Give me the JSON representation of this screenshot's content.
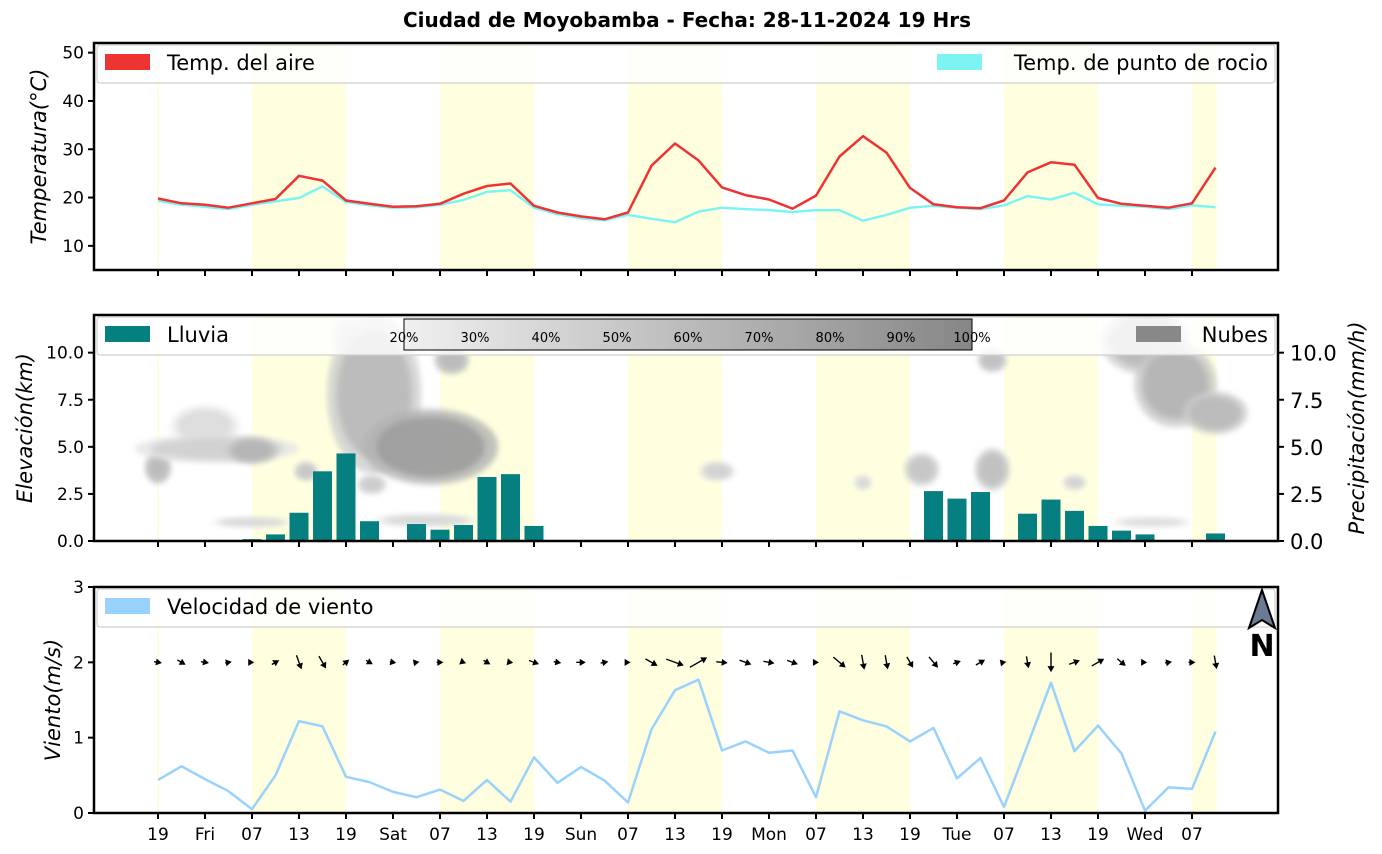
{
  "title": "Ciudad de Moyobamba   -   Fecha: 28-11-2024 19 Hrs",
  "colors": {
    "temp_air": "#ee3333",
    "dew_point": "#7df4f4",
    "rain": "#057f7f",
    "clouds": "#888888",
    "wind": "#99d2fd",
    "day_band": "#ffffe0"
  },
  "x_ticks": [
    "19",
    "Fri",
    "07",
    "13",
    "19",
    "Sat",
    "07",
    "13",
    "19",
    "Sun",
    "07",
    "13",
    "19",
    "Mon",
    "07",
    "13",
    "19",
    "Tue",
    "07",
    "13",
    "19",
    "Wed",
    "07"
  ],
  "chart_data": [
    {
      "type": "line",
      "ylabel": "Temperatura(°C)",
      "ylim": [
        5,
        52
      ],
      "yticks": [
        "10",
        "20",
        "30",
        "40",
        "50"
      ],
      "legend": [
        "Temp. del aire",
        "Temp. de punto de rocio"
      ],
      "series": [
        {
          "name": "Temp. del aire",
          "values": [
            19.8,
            18.8,
            18.5,
            17.9,
            18.8,
            19.7,
            24.5,
            23.5,
            19.4,
            18.7,
            18.1,
            18.2,
            18.7,
            20.8,
            22.4,
            22.9,
            18.3,
            16.9,
            16.1,
            15.5,
            16.9,
            26.6,
            31.2,
            27.7,
            22.1,
            20.5,
            19.6,
            17.7,
            20.4,
            28.5,
            32.7,
            29.3,
            22.0,
            18.6,
            18.0,
            17.8,
            19.4,
            25.2,
            27.3,
            26.8,
            19.9,
            18.7,
            18.3,
            17.9,
            18.8,
            26.2
          ]
        },
        {
          "name": "Temp. de punto de rocio",
          "values": [
            19.3,
            18.5,
            18.1,
            17.6,
            18.5,
            19.2,
            19.9,
            22.3,
            19.1,
            18.4,
            17.9,
            18.0,
            18.5,
            19.5,
            21.2,
            21.5,
            17.9,
            16.6,
            15.7,
            15.3,
            16.4,
            15.6,
            14.9,
            17.1,
            17.9,
            17.6,
            17.4,
            17.0,
            17.4,
            17.4,
            15.2,
            16.4,
            17.9,
            18.3,
            17.9,
            17.6,
            18.4,
            20.3,
            19.6,
            21.0,
            18.6,
            18.3,
            18.1,
            17.6,
            18.4,
            18.0
          ]
        }
      ]
    },
    {
      "type": "bar",
      "ylabel": "Elevación(km)",
      "ylabel_right": "Precipitación(mm/h)",
      "ylim": [
        0,
        12
      ],
      "yticks": [
        "0.0",
        "2.5",
        "5.0",
        "7.5",
        "10.0"
      ],
      "legend": [
        "Lluvia",
        "Nubes"
      ],
      "colorbar_labels": [
        "20%",
        "30%",
        "40%",
        "50%",
        "60%",
        "70%",
        "80%",
        "90%",
        "100%"
      ],
      "series": [
        {
          "name": "Lluvia",
          "values": [
            0,
            0,
            0,
            0,
            0.1,
            0.35,
            1.5,
            3.7,
            4.65,
            1.05,
            0.05,
            0.9,
            0.6,
            0.85,
            3.4,
            3.55,
            0.8,
            0,
            0,
            0,
            0,
            0.05,
            0.05,
            0,
            0,
            0,
            0,
            0,
            0,
            0.05,
            0,
            0.05,
            0.05,
            2.65,
            2.25,
            2.6,
            0.05,
            1.45,
            2.2,
            1.6,
            0.8,
            0.55,
            0.35,
            0,
            0,
            0.4
          ]
        }
      ],
      "clouds": [
        {
          "x": 0.0,
          "y": 3.9,
          "rx": 0.45,
          "ry": 0.7,
          "level": 0.45
        },
        {
          "x": 2.0,
          "y": 6.1,
          "rx": 1.2,
          "ry": 0.9,
          "level": 0.15
        },
        {
          "x": 2.5,
          "y": 4.9,
          "rx": 2.8,
          "ry": 0.6,
          "level": 0.25
        },
        {
          "x": 4.0,
          "y": 4.8,
          "rx": 0.9,
          "ry": 0.55,
          "level": 0.5
        },
        {
          "x": 4.0,
          "y": 1.0,
          "rx": 1.4,
          "ry": 0.2,
          "level": 0.2
        },
        {
          "x": 8.0,
          "y": 10.9,
          "rx": 0.5,
          "ry": 0.8,
          "level": 0.2
        },
        {
          "x": 9.2,
          "y": 7.8,
          "rx": 1.6,
          "ry": 3.4,
          "level": 0.45
        },
        {
          "x": 11.6,
          "y": 5.0,
          "rx": 2.3,
          "ry": 1.6,
          "level": 0.7
        },
        {
          "x": 12.5,
          "y": 9.6,
          "rx": 0.6,
          "ry": 0.6,
          "level": 0.45
        },
        {
          "x": 6.3,
          "y": 3.7,
          "rx": 0.4,
          "ry": 0.4,
          "level": 0.35
        },
        {
          "x": 9.1,
          "y": 3.0,
          "rx": 0.5,
          "ry": 0.4,
          "level": 0.3
        },
        {
          "x": 11.4,
          "y": 1.1,
          "rx": 1.8,
          "ry": 0.25,
          "level": 0.2
        },
        {
          "x": 23.8,
          "y": 3.7,
          "rx": 0.6,
          "ry": 0.4,
          "level": 0.25
        },
        {
          "x": 32.5,
          "y": 3.8,
          "rx": 0.6,
          "ry": 0.7,
          "level": 0.35
        },
        {
          "x": 35.5,
          "y": 3.8,
          "rx": 0.6,
          "ry": 0.9,
          "level": 0.4
        },
        {
          "x": 35.5,
          "y": 9.6,
          "rx": 0.5,
          "ry": 0.5,
          "level": 0.4
        },
        {
          "x": 30.0,
          "y": 3.1,
          "rx": 0.3,
          "ry": 0.3,
          "level": 0.2
        },
        {
          "x": 39.0,
          "y": 3.1,
          "rx": 0.4,
          "ry": 0.3,
          "level": 0.25
        },
        {
          "x": 42.3,
          "y": 1.0,
          "rx": 1.4,
          "ry": 0.2,
          "level": 0.15
        },
        {
          "x": 42.0,
          "y": 10.6,
          "rx": 1.5,
          "ry": 1.4,
          "level": 0.45
        },
        {
          "x": 43.3,
          "y": 8.3,
          "rx": 1.4,
          "ry": 1.8,
          "level": 0.5
        },
        {
          "x": 45.0,
          "y": 6.8,
          "rx": 1.1,
          "ry": 0.9,
          "level": 0.45
        }
      ]
    },
    {
      "type": "line",
      "ylabel": "Viento(m/s)",
      "ylim": [
        0,
        3
      ],
      "yticks": [
        "0",
        "1",
        "2",
        "3"
      ],
      "legend": [
        "Velocidad de viento"
      ],
      "north_label": "N",
      "series": [
        {
          "name": "Velocidad de viento",
          "values": [
            0.44,
            0.62,
            0.45,
            0.29,
            0.05,
            0.5,
            1.22,
            1.15,
            0.48,
            0.41,
            0.28,
            0.21,
            0.31,
            0.16,
            0.44,
            0.15,
            0.74,
            0.4,
            0.61,
            0.43,
            0.14,
            1.11,
            1.63,
            1.77,
            0.83,
            0.95,
            0.8,
            0.83,
            0.21,
            1.35,
            1.23,
            1.15,
            0.95,
            1.13,
            0.46,
            0.73,
            0.08,
            0.9,
            1.73,
            0.82,
            1.16,
            0.79,
            0.03,
            0.34,
            0.32,
            1.08
          ]
        }
      ],
      "wind_dir_deg": [
        100,
        120,
        100,
        80,
        90,
        60,
        160,
        150,
        50,
        120,
        100,
        80,
        90,
        110,
        120,
        100,
        110,
        100,
        90,
        80,
        90,
        120,
        110,
        60,
        95,
        110,
        100,
        110,
        90,
        130,
        170,
        170,
        150,
        140,
        70,
        60,
        80,
        170,
        180,
        70,
        60,
        130,
        90,
        80,
        90,
        170
      ]
    }
  ]
}
